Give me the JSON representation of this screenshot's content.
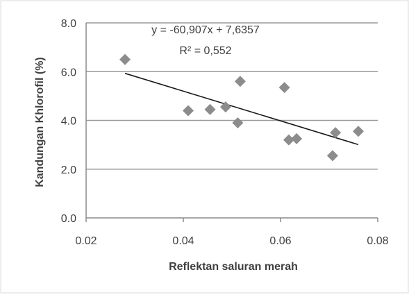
{
  "chart_data": {
    "type": "scatter",
    "xlabel": "Reflektan saluran merah",
    "ylabel": "Kandungan Khlorofil (%)",
    "xlim": [
      0.02,
      0.08
    ],
    "ylim": [
      0.0,
      8.0
    ],
    "x_ticks": [
      "0.02",
      "0.04",
      "0.06",
      "0.08"
    ],
    "y_ticks": [
      "0.0",
      "2.0",
      "4.0",
      "6.0",
      "8.0"
    ],
    "grid": "horizontal",
    "points": [
      {
        "x": 0.028,
        "y": 6.5
      },
      {
        "x": 0.041,
        "y": 4.4
      },
      {
        "x": 0.0455,
        "y": 4.45
      },
      {
        "x": 0.0487,
        "y": 4.55
      },
      {
        "x": 0.0512,
        "y": 3.9
      },
      {
        "x": 0.0517,
        "y": 5.6
      },
      {
        "x": 0.0608,
        "y": 5.35
      },
      {
        "x": 0.0617,
        "y": 3.2
      },
      {
        "x": 0.0633,
        "y": 3.25
      },
      {
        "x": 0.0707,
        "y": 2.55
      },
      {
        "x": 0.0713,
        "y": 3.5
      },
      {
        "x": 0.076,
        "y": 3.55
      }
    ],
    "trendline": {
      "slope": -60.907,
      "intercept": 7.6357,
      "x_range": [
        0.028,
        0.076
      ],
      "equation_label": "y = -60,907x + 7,6357",
      "r2_label": "R² = 0,552"
    },
    "colors": {
      "marker": "#8c8c8c",
      "trendline": "#1a1a1a",
      "grid": "#9a9a9a",
      "axis": "#8a8a8a",
      "text": "#404040"
    }
  }
}
